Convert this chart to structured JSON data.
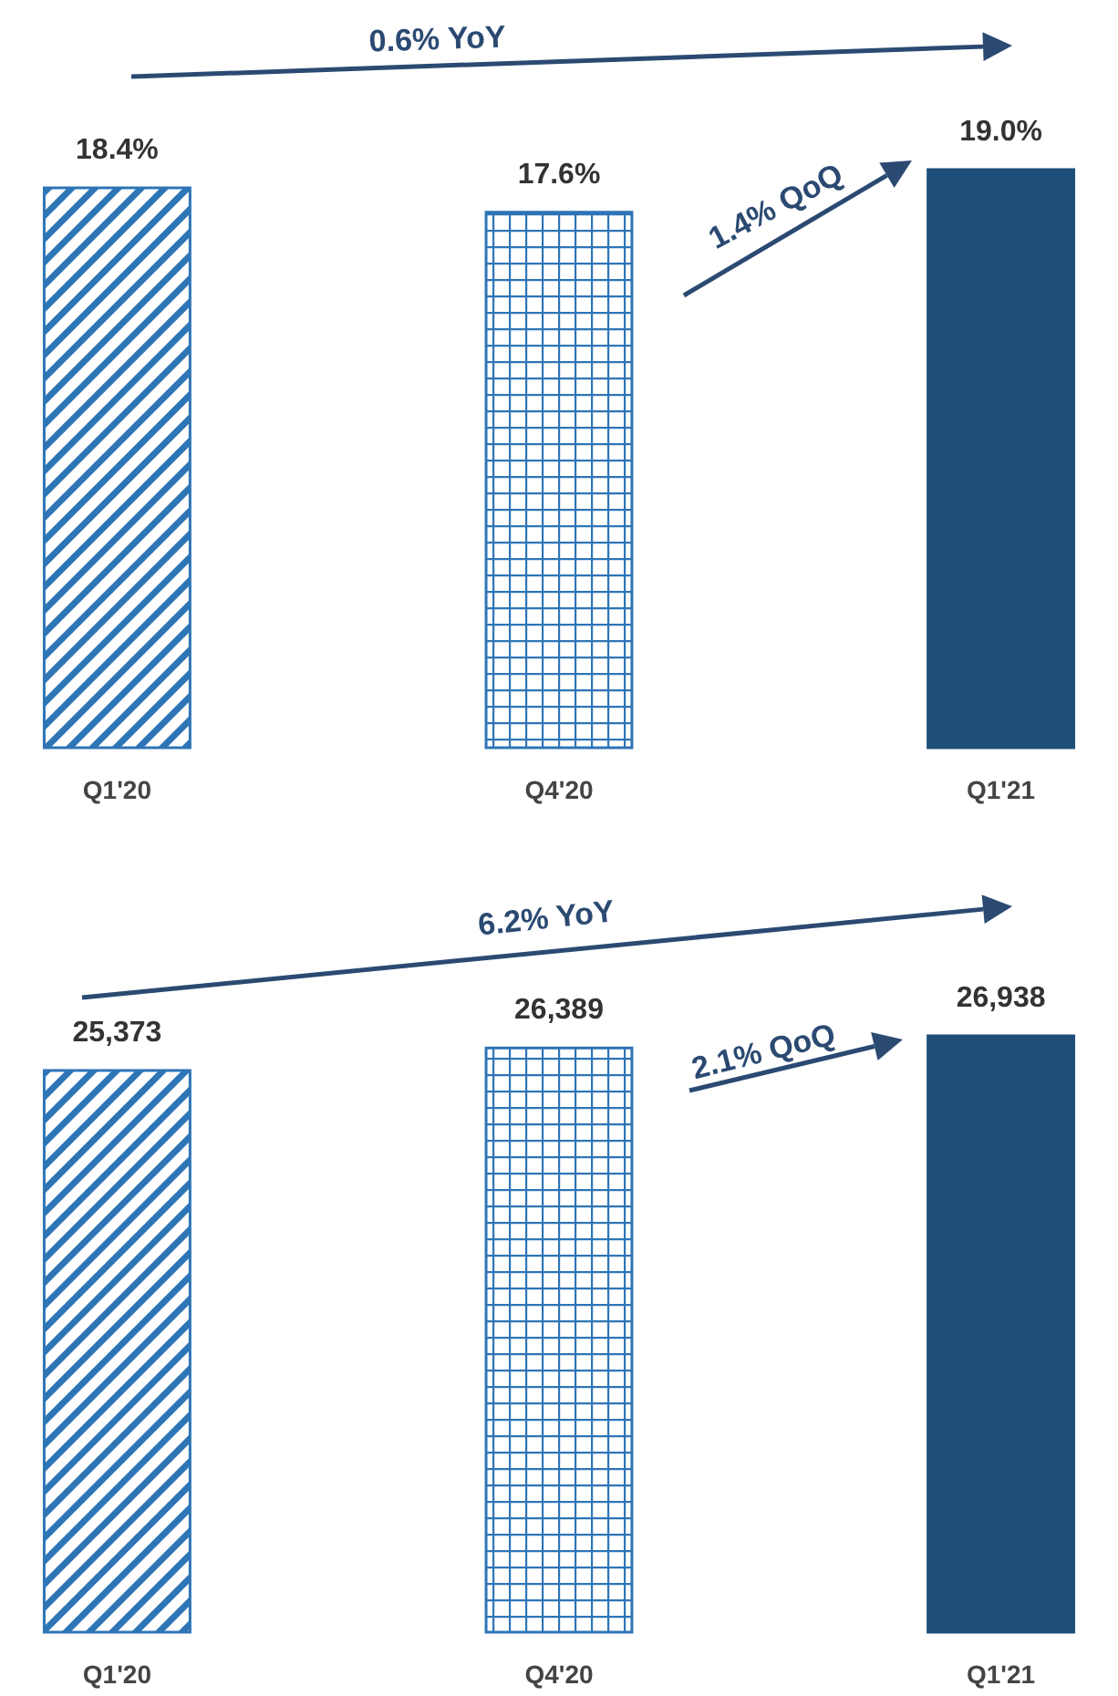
{
  "chart_data": [
    {
      "type": "bar",
      "categories": [
        "Q1'20",
        "Q4'20",
        "Q1'21"
      ],
      "values": [
        18.4,
        17.6,
        19.0
      ],
      "value_labels": [
        "18.4%",
        "17.6%",
        "19.0%"
      ],
      "colors": [
        "#2e75b6",
        "#2e75b6",
        "#1f4e79"
      ],
      "annotations": [
        "0.6% YoY",
        "1.4% QoQ"
      ]
    },
    {
      "type": "bar",
      "categories": [
        "Q1'20",
        "Q4'20",
        "Q1'21"
      ],
      "values": [
        25373,
        26389,
        26938
      ],
      "value_labels": [
        "25,373",
        "26,389",
        "26,938"
      ],
      "colors": [
        "#2e75b6",
        "#2e75b6",
        "#1f4e79"
      ],
      "annotations": [
        "6.2% YoY",
        "2.1% QoQ"
      ]
    }
  ]
}
